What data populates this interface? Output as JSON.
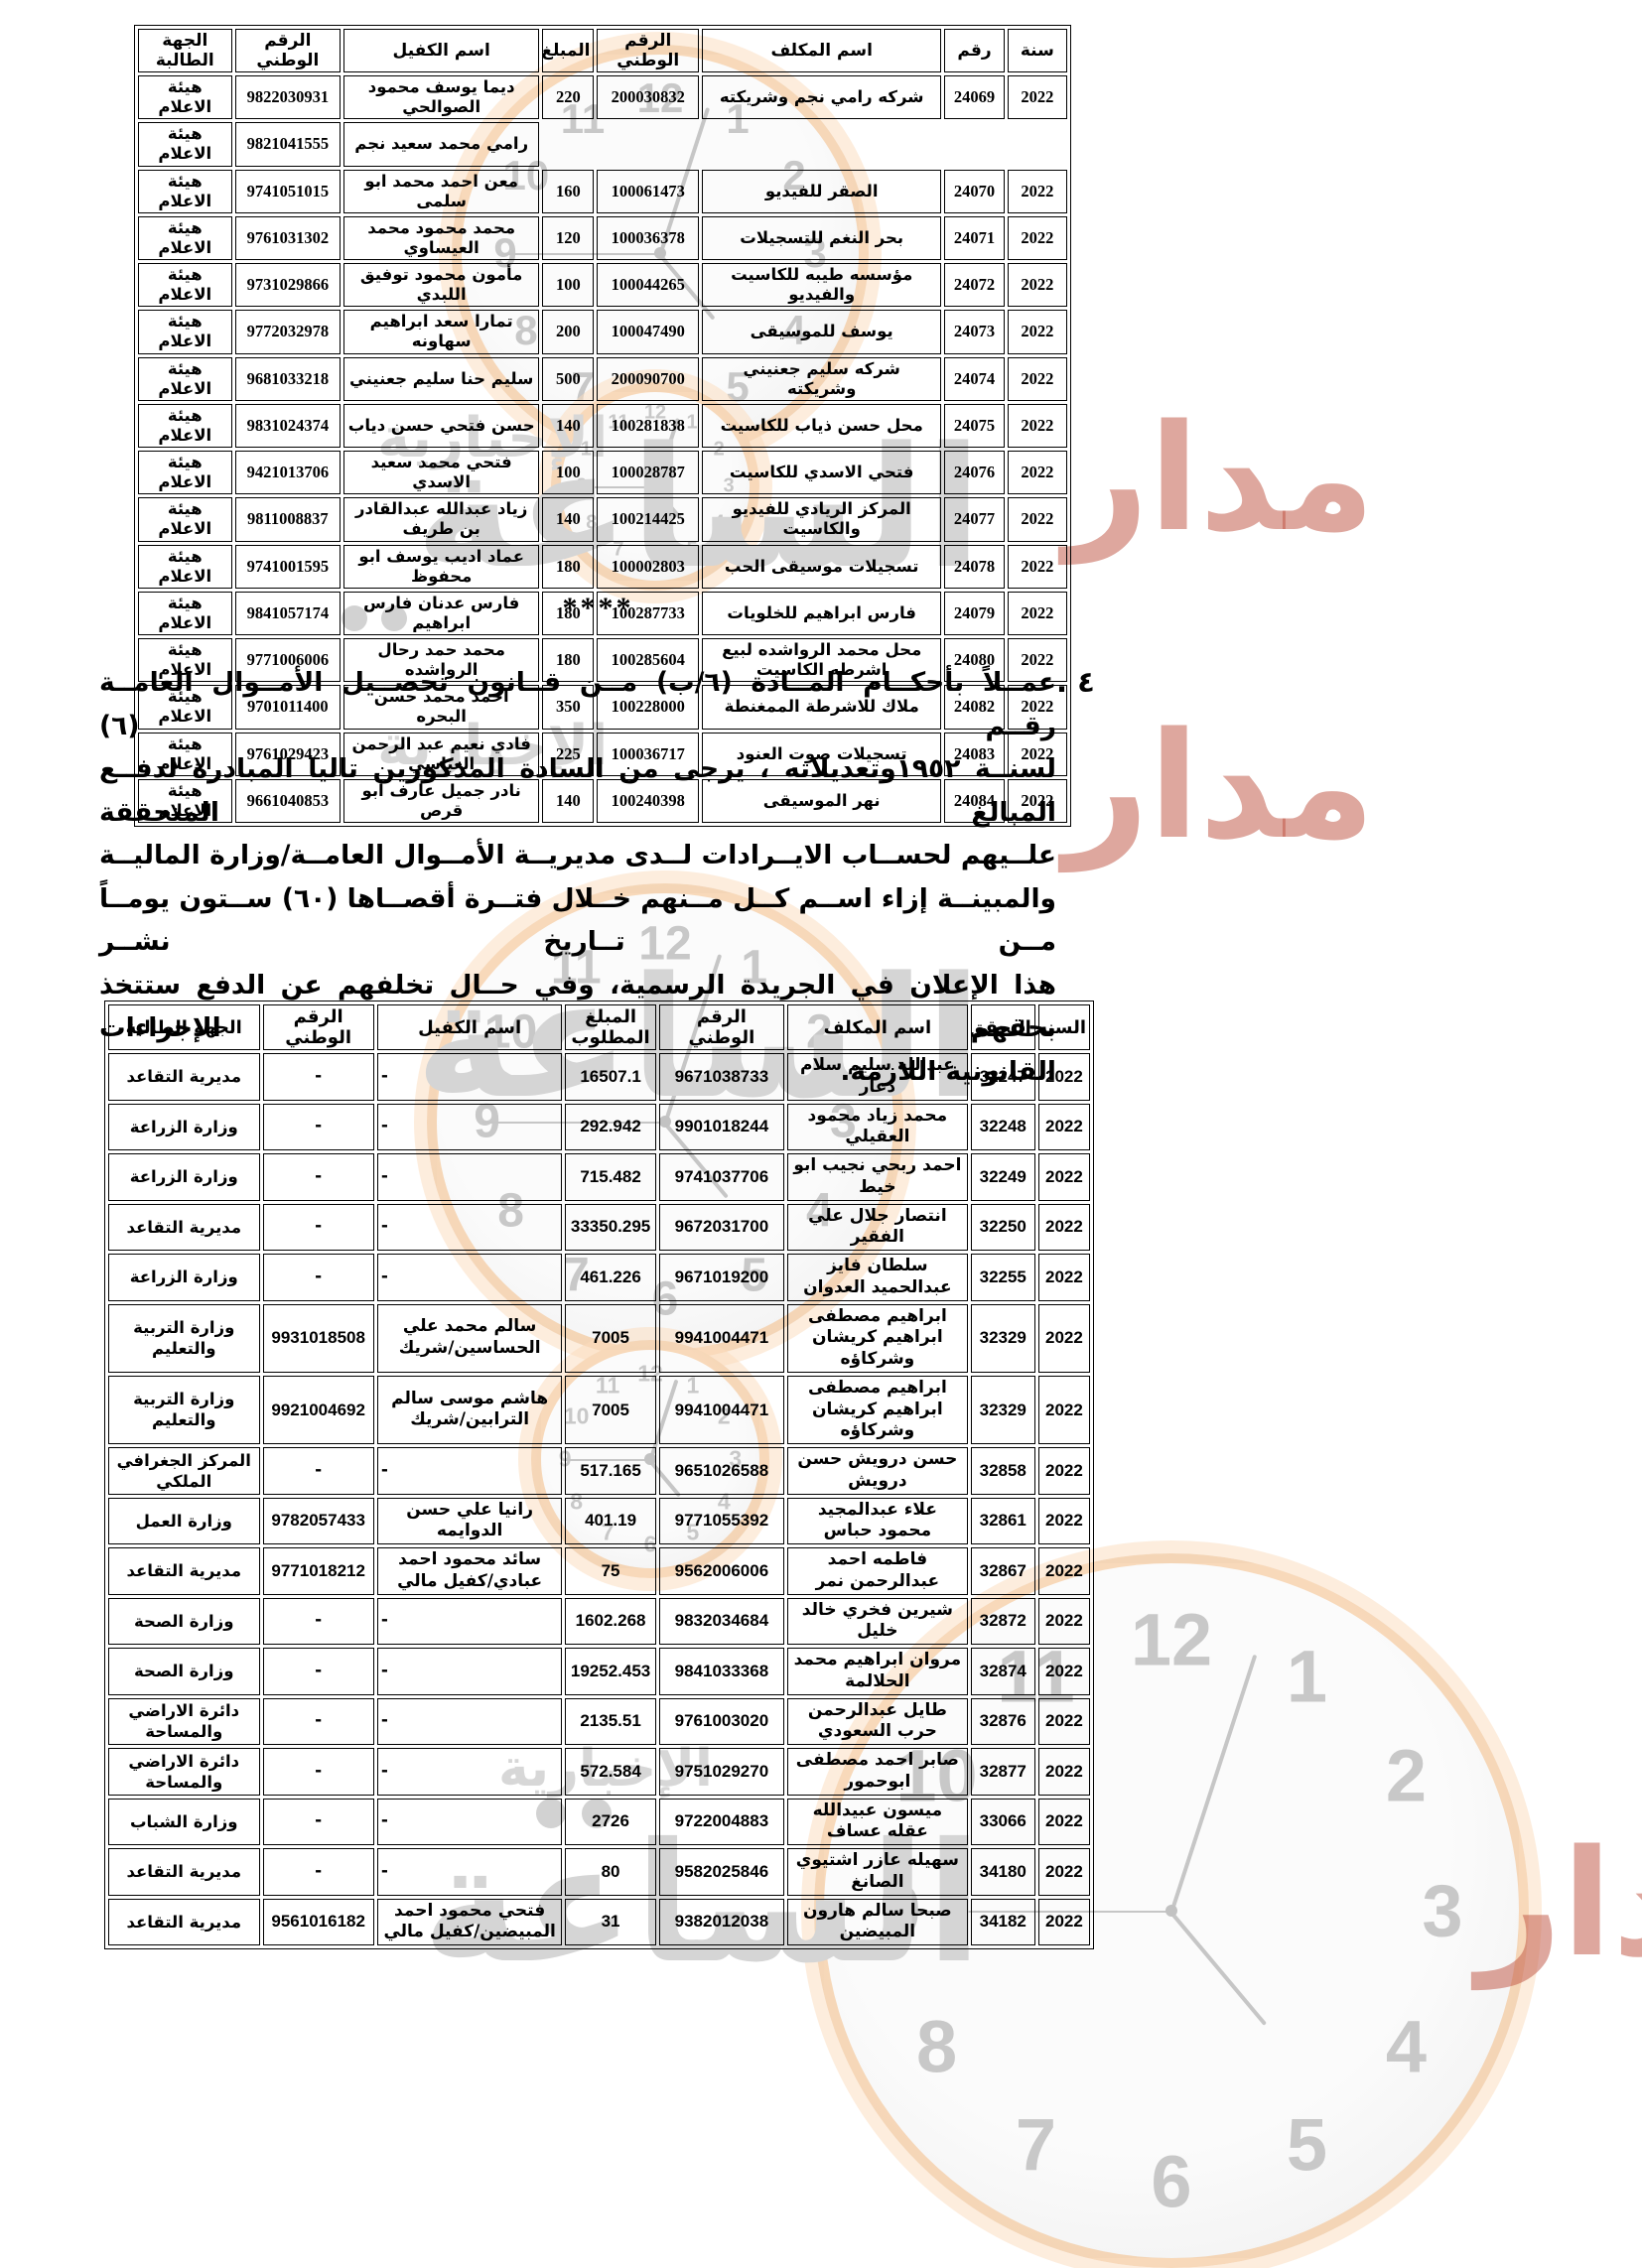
{
  "document": {
    "separator": "****",
    "clause": {
      "number": "٤ .",
      "lines": [
        "عمــلاً بأحكــام المــادة (٦/ب) مــن قــانون تحصــيل الأمــوال العامــة رقــم (٦)",
        "لسنــة ١٩٥٢وتعديلاته ، يرجى من السادة المذكورين تاليا المبادرة لدفــع المبالغ المتحققة",
        "علــيهم لحســاب الايــرادات لــدى مديريــة الأمــوال العامــة/وزارة الماليــة",
        "والمبينــة إزاء اســم كــل مــنهم خــلال فتــرة أقصــاها (٦٠) ســتون يومــاً مــن تــاريخ نشــر",
        "هذا الإعلان في الجريدة الرسمية، وفي حــال تخلفهم عن الدفع ستتخذ بحقهم الإجراءات",
        "القانونية اللازمة."
      ]
    }
  },
  "table1": {
    "headers": [
      "سنة",
      "رقم",
      "اسم المكلف",
      "الرقم الوطني",
      "المبلغ",
      "اسم الكفيل",
      "الرقم الوطني",
      "الجهة الطالبة"
    ],
    "rows": [
      {
        "year": "2022",
        "no": "24069",
        "taxpayer": "شركه رامي نجم وشريكته",
        "tax_id": "200030832",
        "amount": "220",
        "guarantor": "ديما يوسف محمود الصوالحي",
        "guarantor_id": "9822030931",
        "entity": "هيئة الاعلام"
      },
      {
        "year": "",
        "no": "",
        "taxpayer": "",
        "tax_id": "",
        "amount": "",
        "guarantor": "رامي محمد سعيد نجم",
        "guarantor_id": "9821041555",
        "entity": "هيئة الاعلام",
        "continuation": true
      },
      {
        "year": "2022",
        "no": "24070",
        "taxpayer": "الصقر للفيديو",
        "tax_id": "100061473",
        "amount": "160",
        "guarantor": "معن احمد محمد ابو سلمى",
        "guarantor_id": "9741051015",
        "entity": "هيئة الاعلام"
      },
      {
        "year": "2022",
        "no": "24071",
        "taxpayer": "بحر النغم للتسجيلات",
        "tax_id": "100036378",
        "amount": "120",
        "guarantor": "محمد محمود محمد العيساوي",
        "guarantor_id": "9761031302",
        "entity": "هيئة الاعلام"
      },
      {
        "year": "2022",
        "no": "24072",
        "taxpayer": "مؤسسه طيبه للكاسيت والفيديو",
        "tax_id": "100044265",
        "amount": "100",
        "guarantor": "مأمون محمود توفيق اللبدي",
        "guarantor_id": "9731029866",
        "entity": "هيئة الاعلام"
      },
      {
        "year": "2022",
        "no": "24073",
        "taxpayer": "يوسف للموسيقى",
        "tax_id": "100047490",
        "amount": "200",
        "guarantor": "تمارا سعد ابراهيم سهاونه",
        "guarantor_id": "9772032978",
        "entity": "هيئة الاعلام"
      },
      {
        "year": "2022",
        "no": "24074",
        "taxpayer": "شركه سليم جعنيني وشريكته",
        "tax_id": "200090700",
        "amount": "500",
        "guarantor": "سليم حنا سليم جعنيني",
        "guarantor_id": "9681033218",
        "entity": "هيئة الاعلام"
      },
      {
        "year": "2022",
        "no": "24075",
        "taxpayer": "محل حسن ذياب للكاسيت",
        "tax_id": "100281838",
        "amount": "140",
        "guarantor": "حسن فتحي حسن دياب",
        "guarantor_id": "9831024374",
        "entity": "هيئة الاعلام"
      },
      {
        "year": "2022",
        "no": "24076",
        "taxpayer": "فتحي الاسدي للكاسيت",
        "tax_id": "100028787",
        "amount": "100",
        "guarantor": "فتحي محمد سعيد الاسدي",
        "guarantor_id": "9421013706",
        "entity": "هيئة الاعلام"
      },
      {
        "year": "2022",
        "no": "24077",
        "taxpayer": "المركز الريادي للفيديو والكاسيت",
        "tax_id": "100214425",
        "amount": "140",
        "guarantor": "زياد عبدالله عبدالقادر بن طريف",
        "guarantor_id": "9811008837",
        "entity": "هيئة الاعلام"
      },
      {
        "year": "2022",
        "no": "24078",
        "taxpayer": "تسجيلات موسيقى الحب",
        "tax_id": "100002803",
        "amount": "180",
        "guarantor": "عماد اديب يوسف ابو محفوظ",
        "guarantor_id": "9741001595",
        "entity": "هيئة الاعلام"
      },
      {
        "year": "2022",
        "no": "24079",
        "taxpayer": "فارس ابراهيم للخلويات",
        "tax_id": "100287733",
        "amount": "180",
        "guarantor": "فارس عدنان فارس ابراهيم",
        "guarantor_id": "9841057174",
        "entity": "هيئة الاعلام"
      },
      {
        "year": "2022",
        "no": "24080",
        "taxpayer": "محل محمد الرواشده لبيع اشرطه الكاسيت",
        "tax_id": "100285604",
        "amount": "180",
        "guarantor": "محمد حمد رحال الرواشده",
        "guarantor_id": "9771006006",
        "entity": "هيئة الاعلام"
      },
      {
        "year": "2022",
        "no": "24082",
        "taxpayer": "ملاك للاشرطة الممغنطة",
        "tax_id": "100228000",
        "amount": "350",
        "guarantor": "احمد محمد حسن البحره",
        "guarantor_id": "9701011400",
        "entity": "هيئة الاعلام"
      },
      {
        "year": "2022",
        "no": "24083",
        "taxpayer": "تسجيلات صوت العنود",
        "tax_id": "100036717",
        "amount": "225",
        "guarantor": "فادي نعيم عبد الرحمن العباسي",
        "guarantor_id": "9761029423",
        "entity": "هيئة الاعلام"
      },
      {
        "year": "2022",
        "no": "24084",
        "taxpayer": "نهر الموسيقى",
        "tax_id": "100240398",
        "amount": "140",
        "guarantor": "نادر جميل عارف ابو قرص",
        "guarantor_id": "9661040853",
        "entity": "هيئة الاعلام"
      }
    ]
  },
  "table2": {
    "headers": [
      "السنه",
      "التحقق",
      "اسم المكلف",
      "الرقم الوطني",
      "المبلغ المطلوب",
      "اسم الكفيل",
      "الرقم الوطني",
      "الجهة الطالبة"
    ],
    "rows": [
      {
        "year": "2022",
        "check": "32247",
        "taxpayer": "عبدالله سليم سلام دعار",
        "tax_id": "9671038733",
        "amount": "16507.1",
        "guarantor": "-",
        "guarantor_id": "-",
        "entity": "مديرية التقاعد"
      },
      {
        "year": "2022",
        "check": "32248",
        "taxpayer": "محمد زياد محمود العقيلي",
        "tax_id": "9901018244",
        "amount": "292.942",
        "guarantor": "-",
        "guarantor_id": "-",
        "entity": "وزارة الزراعة"
      },
      {
        "year": "2022",
        "check": "32249",
        "taxpayer": "احمد ربحي نجيب ابو خيط",
        "tax_id": "9741037706",
        "amount": "715.482",
        "guarantor": "-",
        "guarantor_id": "-",
        "entity": "وزارة الزراعة"
      },
      {
        "year": "2022",
        "check": "32250",
        "taxpayer": "انتصار جلال علي الفقير",
        "tax_id": "9672031700",
        "amount": "33350.295",
        "guarantor": "-",
        "guarantor_id": "-",
        "entity": "مديرية التقاعد"
      },
      {
        "year": "2022",
        "check": "32255",
        "taxpayer": "سلطان فايز عبدالحميد العدوان",
        "tax_id": "9671019200",
        "amount": "461.226",
        "guarantor": "-",
        "guarantor_id": "-",
        "entity": "وزارة الزراعة"
      },
      {
        "year": "2022",
        "check": "32329",
        "taxpayer": "ابراهيم مصطفى ابراهيم كريشان وشركاؤه",
        "tax_id": "9941004471",
        "amount": "7005",
        "guarantor": "سالم محمد علي الحساسين/شريك",
        "guarantor_id": "9931018508",
        "entity": "وزارة التربية والتعليم"
      },
      {
        "year": "2022",
        "check": "32329",
        "taxpayer": "ابراهيم مصطفى ابراهيم كريشان وشركاؤه",
        "tax_id": "9941004471",
        "amount": "7005",
        "guarantor": "هاشم موسى سالم الترابين/شريك",
        "guarantor_id": "9921004692",
        "entity": "وزارة التربية والتعليم"
      },
      {
        "year": "2022",
        "check": "32858",
        "taxpayer": "حسن درويش حسن درويش",
        "tax_id": "9651026588",
        "amount": "517.165",
        "guarantor": "-",
        "guarantor_id": "-",
        "entity": "المركز الجغرافي الملكي"
      },
      {
        "year": "2022",
        "check": "32861",
        "taxpayer": "علاء عبدالمجيد محمود حباس",
        "tax_id": "9771055392",
        "amount": "401.19",
        "guarantor": "رانيا علي حسن الدوايمه",
        "guarantor_id": "9782057433",
        "entity": "وزارة العمل"
      },
      {
        "year": "2022",
        "check": "32867",
        "taxpayer": "فاطمه احمد عبدالرحمن نمر",
        "tax_id": "9562006006",
        "amount": "75",
        "guarantor": "سائد محمود احمد عبادي/كفيل مالي",
        "guarantor_id": "9771018212",
        "entity": "مديرية التقاعد"
      },
      {
        "year": "2022",
        "check": "32872",
        "taxpayer": "شيرين فخري خالد خليل",
        "tax_id": "9832034684",
        "amount": "1602.268",
        "guarantor": "-",
        "guarantor_id": "-",
        "entity": "وزارة الصحة"
      },
      {
        "year": "2022",
        "check": "32874",
        "taxpayer": "مروان ابراهيم محمد الحلالمة",
        "tax_id": "9841033368",
        "amount": "19252.453",
        "guarantor": "-",
        "guarantor_id": "-",
        "entity": "وزارة الصحة"
      },
      {
        "year": "2022",
        "check": "32876",
        "taxpayer": "طايل عبدالرحمن حرب السعودي",
        "tax_id": "9761003020",
        "amount": "2135.51",
        "guarantor": "-",
        "guarantor_id": "-",
        "entity": "دائرة الاراضي والمساحة"
      },
      {
        "year": "2022",
        "check": "32877",
        "taxpayer": "صابر احمد مصطفى ابوحمور",
        "tax_id": "9751029270",
        "amount": "572.584",
        "guarantor": "-",
        "guarantor_id": "-",
        "entity": "دائرة الاراضي والمساحة"
      },
      {
        "year": "2022",
        "check": "33066",
        "taxpayer": "ميسون عبيدالله عقله عساف",
        "tax_id": "9722004883",
        "amount": "2726",
        "guarantor": "-",
        "guarantor_id": "-",
        "entity": "وزارة الشباب"
      },
      {
        "year": "2022",
        "check": "34180",
        "taxpayer": "سهيله عازر اشتيوي الصانغ",
        "tax_id": "9582025846",
        "amount": "80",
        "guarantor": "-",
        "guarantor_id": "-",
        "entity": "مديرية التقاعد"
      },
      {
        "year": "2022",
        "check": "34182",
        "taxpayer": "صبحا سالم هارون المبيضين",
        "tax_id": "9382012038",
        "amount": "31",
        "guarantor": "فتحي محمود احمد المبيضين/كفيل مالي",
        "guarantor_id": "9561016182",
        "entity": "مديرية التقاعد"
      }
    ]
  },
  "watermark": {
    "brand_red": "مدار",
    "brand_big": "الساعة",
    "brand_small": "الإخبارية",
    "clock_numerals": [
      "12",
      "1",
      "2",
      "3",
      "4",
      "5",
      "6",
      "7",
      "8",
      "9",
      "10",
      "11"
    ],
    "colors": {
      "gray": "#d7d7d7",
      "orange": "#f3aa5f",
      "red": "#bd503e"
    }
  }
}
